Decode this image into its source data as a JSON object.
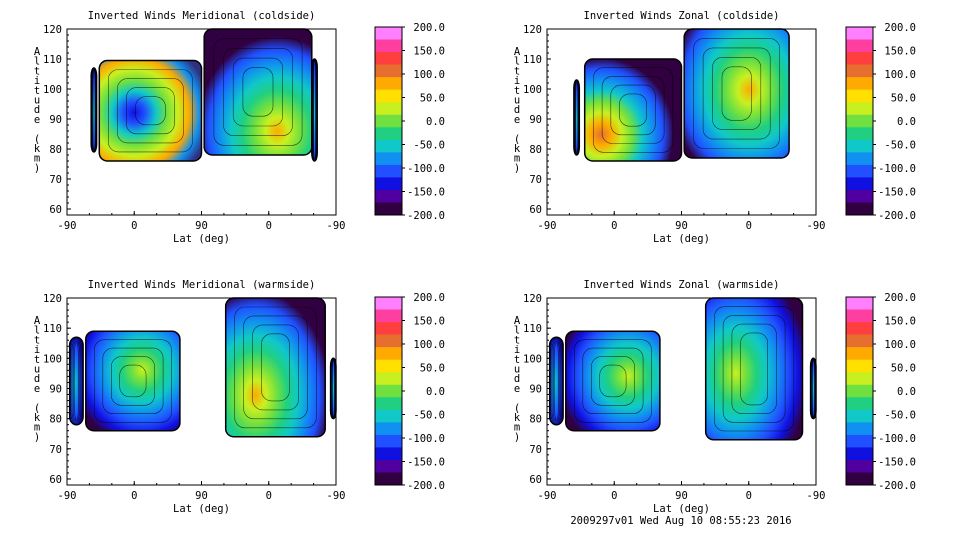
{
  "chart_data": [
    {
      "type": "heatmap",
      "title": "Inverted Winds Meridional (coldside)",
      "xlabel": "Lat (deg)",
      "ylabel": "Altitude (km)",
      "x_ticks": [
        "-90",
        "0",
        "90",
        "0",
        "-90"
      ],
      "y_ticks": [
        "60",
        "70",
        "80",
        "90",
        "100",
        "110",
        "120"
      ],
      "ylim": [
        58,
        120
      ],
      "colorbar_ticks": [
        "200.0",
        "150.0",
        "100.0",
        "50.0",
        "0.0",
        "-50.0",
        "-100.0",
        "-150.0",
        "-200.0"
      ],
      "value_range": [
        -200,
        200
      ],
      "grid": false
    },
    {
      "type": "heatmap",
      "title": "Inverted Winds Zonal (coldside)",
      "xlabel": "Lat (deg)",
      "ylabel": "Altitude (km)",
      "x_ticks": [
        "-90",
        "0",
        "90",
        "0",
        "-90"
      ],
      "y_ticks": [
        "60",
        "70",
        "80",
        "90",
        "100",
        "110",
        "120"
      ],
      "ylim": [
        58,
        120
      ],
      "colorbar_ticks": [
        "200.0",
        "150.0",
        "100.0",
        "50.0",
        "0.0",
        "-50.0",
        "-100.0",
        "-150.0",
        "-200.0"
      ],
      "value_range": [
        -200,
        200
      ],
      "grid": false
    },
    {
      "type": "heatmap",
      "title": "Inverted Winds Meridional (warmside)",
      "xlabel": "Lat (deg)",
      "ylabel": "Altitude (km)",
      "x_ticks": [
        "-90",
        "0",
        "90",
        "0",
        "-90"
      ],
      "y_ticks": [
        "60",
        "70",
        "80",
        "90",
        "100",
        "110",
        "120"
      ],
      "ylim": [
        58,
        120
      ],
      "colorbar_ticks": [
        "200.0",
        "150.0",
        "100.0",
        "50.0",
        "0.0",
        "-50.0",
        "-100.0",
        "-150.0",
        "-200.0"
      ],
      "value_range": [
        -200,
        200
      ],
      "grid": false
    },
    {
      "type": "heatmap",
      "title": "Inverted Winds Zonal (warmside)",
      "xlabel": "Lat (deg)",
      "ylabel": "Altitude (km)",
      "x_ticks": [
        "-90",
        "0",
        "90",
        "0",
        "-90"
      ],
      "y_ticks": [
        "60",
        "70",
        "80",
        "90",
        "100",
        "110",
        "120"
      ],
      "ylim": [
        58,
        120
      ],
      "colorbar_ticks": [
        "200.0",
        "150.0",
        "100.0",
        "50.0",
        "0.0",
        "-50.0",
        "-100.0",
        "-150.0",
        "-200.0"
      ],
      "value_range": [
        -200,
        200
      ],
      "grid": false
    }
  ],
  "colorbar_colors": [
    "#ff80ff",
    "#ff3f9f",
    "#ff3f3f",
    "#e66f2f",
    "#ffaa00",
    "#ffe000",
    "#c8f020",
    "#70e040",
    "#20d080",
    "#10c8c8",
    "#1090f0",
    "#2050ff",
    "#1010e0",
    "#5000a0",
    "#300040"
  ],
  "footer": "2009297v01 Wed Aug 10 08:55:23 2016"
}
